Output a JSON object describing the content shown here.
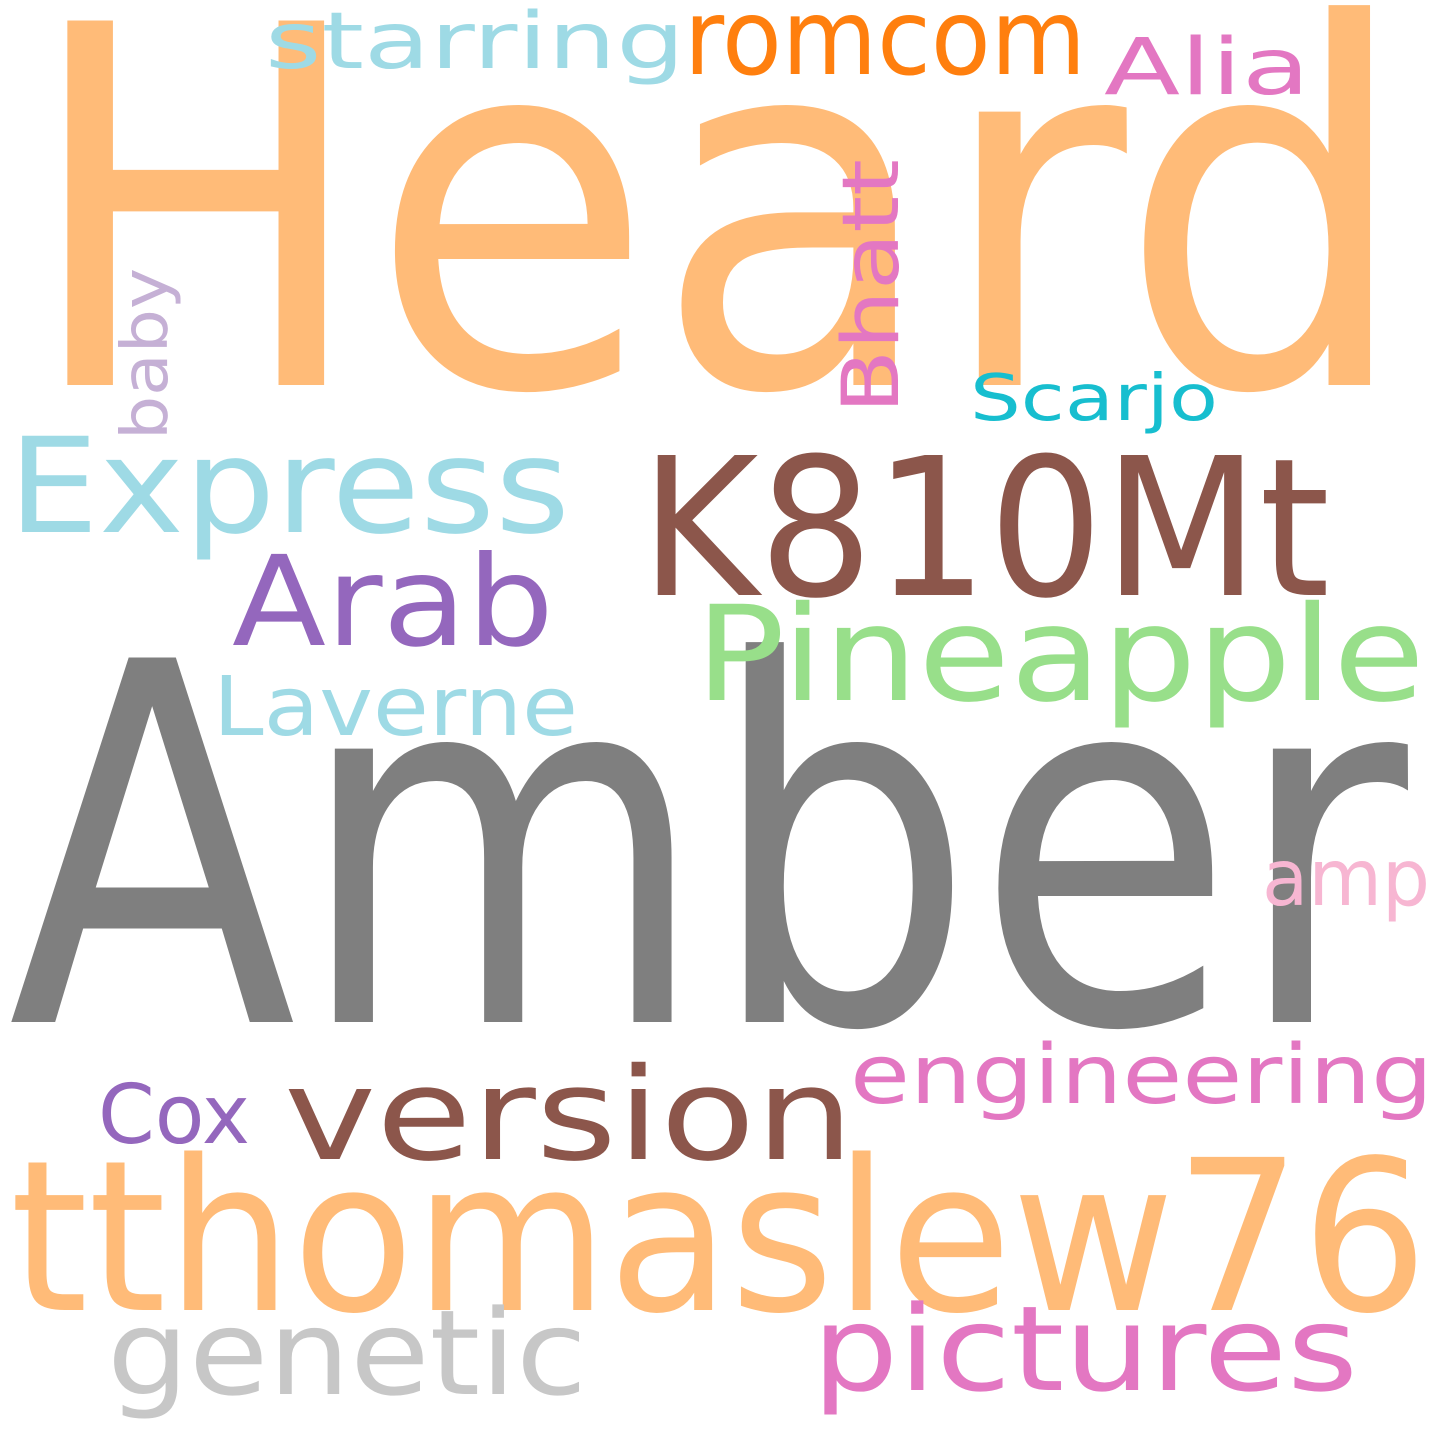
{
  "words": [
    {
      "text": "Heard",
      "color": "#FFBB78"
    },
    {
      "text": "Amber",
      "color": "#7F7F7F"
    },
    {
      "text": "K810Mt",
      "color": "#8C564B"
    },
    {
      "text": "tthomaslew76",
      "color": "#FFBB78"
    },
    {
      "text": "Express",
      "color": "#9EDAE5"
    },
    {
      "text": "Pineapple",
      "color": "#98DF8A"
    },
    {
      "text": "romcom",
      "color": "#FF7F0E"
    },
    {
      "text": "Arab",
      "color": "#9467BD"
    },
    {
      "text": "version",
      "color": "#8C564B"
    },
    {
      "text": "starring",
      "color": "#9EDAE5"
    },
    {
      "text": "Alia",
      "color": "#E377C2"
    },
    {
      "text": "Bhatt",
      "color": "#E377C2"
    },
    {
      "text": "baby",
      "color": "#C5B0D5"
    },
    {
      "text": "Scarjo",
      "color": "#17BECF"
    },
    {
      "text": "Laverne",
      "color": "#9EDAE5"
    },
    {
      "text": "amp",
      "color": "#F7B6D2"
    },
    {
      "text": "engineering",
      "color": "#E377C2"
    },
    {
      "text": "Cox",
      "color": "#9467BD"
    },
    {
      "text": "genetic",
      "color": "#C7C7C7"
    },
    {
      "text": "pictures",
      "color": "#E377C2"
    }
  ]
}
